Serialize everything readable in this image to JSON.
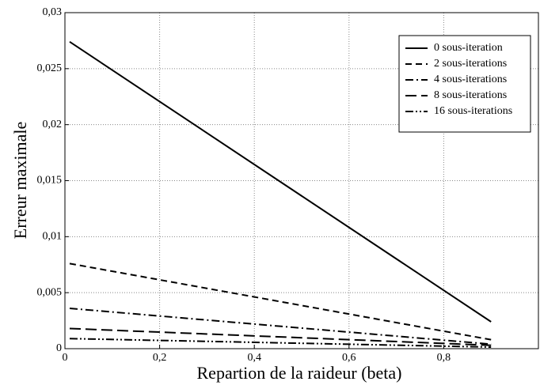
{
  "chart_data": {
    "type": "line",
    "xlabel": "Repartion de la raideur (beta)",
    "ylabel": "Erreur maximale",
    "x": [
      0.01,
      0.9
    ],
    "series": [
      {
        "name": "0 sous-iteration",
        "color": "#000000",
        "linestyle": "solid",
        "values": [
          0.0274,
          0.0024
        ]
      },
      {
        "name": "2 sous-iterations",
        "color": "#000000",
        "linestyle": "dashed",
        "values": [
          0.0076,
          0.0008
        ]
      },
      {
        "name": "4 sous-iterations",
        "color": "#000000",
        "linestyle": "dashdot",
        "values": [
          0.0036,
          0.0004
        ]
      },
      {
        "name": "8 sous-iterations",
        "color": "#000000",
        "linestyle": "longdash",
        "values": [
          0.0018,
          0.0003
        ]
      },
      {
        "name": "16 sous-iterations",
        "color": "#000000",
        "linestyle": "dashdotdot",
        "values": [
          0.0009,
          0.00014
        ]
      }
    ],
    "xlim": [
      0,
      1
    ],
    "xticks": [
      0,
      {
        "value": 0.2,
        "label": "0,2"
      },
      {
        "value": 0.4,
        "label": "0,4"
      },
      {
        "value": 0.6,
        "label": "0,6"
      },
      {
        "value": 0.8,
        "label": "0,8"
      }
    ],
    "ylim": [
      0,
      0.03
    ],
    "yticks": [
      0,
      {
        "value": 0.005,
        "label": "0,005"
      },
      {
        "value": 0.01,
        "label": "0,01"
      },
      {
        "value": 0.015,
        "label": "0,015"
      },
      {
        "value": 0.02,
        "label": "0,02"
      },
      {
        "value": 0.025,
        "label": "0,025"
      },
      {
        "value": 0.03,
        "label": "0,03"
      }
    ],
    "grid": true,
    "legend": "upper right"
  }
}
